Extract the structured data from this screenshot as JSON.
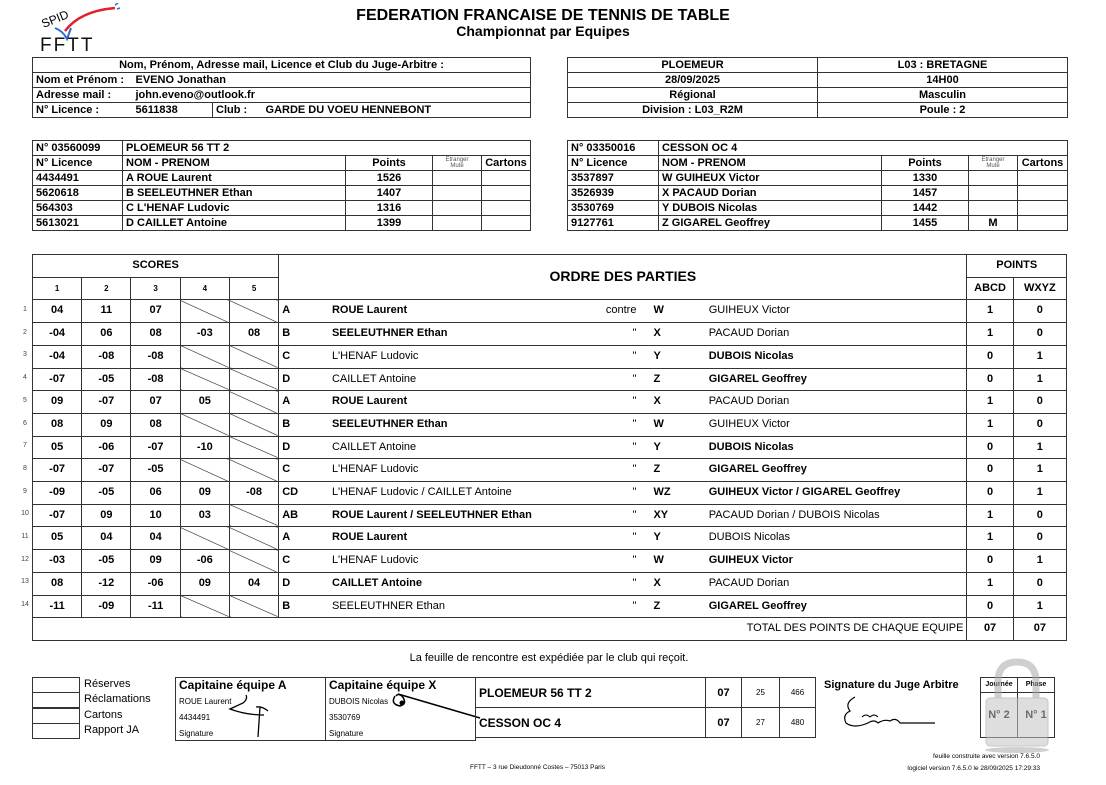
{
  "header": {
    "logo_text": "SPID FFTT",
    "title": "FEDERATION FRANCAISE DE TENNIS DE TABLE",
    "subtitle": "Championnat par Equipes"
  },
  "referee": {
    "heading": "Nom, Prénom, Adresse mail, Licence et Club du Juge-Arbitre :",
    "name_label": "Nom et Prénom :",
    "name": "EVENO   Jonathan",
    "email_label": "Adresse mail  :",
    "email": "john.eveno@outlook.fr",
    "licence_label": "N° Licence    :",
    "licence": "5611838",
    "club_label": "Club :",
    "club": "GARDE DU VOEU HENNEBONT"
  },
  "match_info": {
    "venue": "PLOEMEUR",
    "league": "L03 : BRETAGNE",
    "date": "28/09/2025",
    "time": "14H00",
    "level": "Régional",
    "gender": "Masculin",
    "division": "Division : L03_R2M",
    "poule": "Poule : 2"
  },
  "team_headers": {
    "licence": "N° Licence",
    "name": "NOM - PRENOM",
    "points": "Points",
    "etranger": "Etranger",
    "mute": "Muté",
    "cartons": "Cartons"
  },
  "team_a": {
    "number": "N° 03560099",
    "name": "PLOEMEUR 56 TT 2",
    "players": [
      {
        "licence": "4434491",
        "name": "A   ROUE  Laurent",
        "points": "1526",
        "etranger": "",
        "cartons": ""
      },
      {
        "licence": "5620618",
        "name": "B   SEELEUTHNER  Ethan",
        "points": "1407",
        "etranger": "",
        "cartons": ""
      },
      {
        "licence": "564303",
        "name": "C   L'HENAF  Ludovic",
        "points": "1316",
        "etranger": "",
        "cartons": ""
      },
      {
        "licence": "5613021",
        "name": "D   CAILLET  Antoine",
        "points": "1399",
        "etranger": "",
        "cartons": ""
      }
    ]
  },
  "team_b": {
    "number": "N° 03350016",
    "name": "CESSON OC  4",
    "players": [
      {
        "licence": "3537897",
        "name": "W   GUIHEUX  Victor",
        "points": "1330",
        "etranger": "",
        "cartons": ""
      },
      {
        "licence": "3526939",
        "name": "X   PACAUD  Dorian",
        "points": "1457",
        "etranger": "",
        "cartons": ""
      },
      {
        "licence": "3530769",
        "name": "Y   DUBOIS  Nicolas",
        "points": "1442",
        "etranger": "",
        "cartons": ""
      },
      {
        "licence": "9127761",
        "name": "Z   GIGAREL  Geoffrey",
        "points": "1455",
        "etranger": "M",
        "cartons": ""
      }
    ]
  },
  "scores_table": {
    "scores_label": "SCORES",
    "set_labels": [
      "1",
      "2",
      "3",
      "4",
      "5"
    ],
    "order_label": "ORDRE DES PARTIES",
    "points_label": "POINTS",
    "abcd": "ABCD",
    "wxyz": "WXYZ",
    "total_label": "TOTAL DES POINTS DE CHAQUE EQUIPE",
    "total_a": "07",
    "total_b": "07",
    "matches": [
      {
        "n": "1",
        "sets": [
          "04",
          "11",
          "07",
          null,
          null
        ],
        "la": "A",
        "na": "ROUE Laurent",
        "sep": "contre",
        "lb": "W",
        "nb": "GUIHEUX Victor",
        "pa": "1",
        "pb": "0"
      },
      {
        "n": "2",
        "sets": [
          "-04",
          "06",
          "08",
          "-03",
          "08"
        ],
        "la": "B",
        "na": "SEELEUTHNER Ethan",
        "sep": "\"",
        "lb": "X",
        "nb": "PACAUD Dorian",
        "pa": "1",
        "pb": "0"
      },
      {
        "n": "3",
        "sets": [
          "-04",
          "-08",
          "-08",
          null,
          null
        ],
        "la": "C",
        "na": "L'HENAF Ludovic",
        "sep": "\"",
        "lb": "Y",
        "nb": "DUBOIS Nicolas",
        "pa": "0",
        "pb": "1"
      },
      {
        "n": "4",
        "sets": [
          "-07",
          "-05",
          "-08",
          null,
          null
        ],
        "la": "D",
        "na": "CAILLET Antoine",
        "sep": "\"",
        "lb": "Z",
        "nb": "GIGAREL Geoffrey",
        "pa": "0",
        "pb": "1"
      },
      {
        "n": "5",
        "sets": [
          "09",
          "-07",
          "07",
          "05",
          null
        ],
        "la": "A",
        "na": "ROUE Laurent",
        "sep": "\"",
        "lb": "X",
        "nb": "PACAUD Dorian",
        "pa": "1",
        "pb": "0"
      },
      {
        "n": "6",
        "sets": [
          "08",
          "09",
          "08",
          null,
          null
        ],
        "la": "B",
        "na": "SEELEUTHNER Ethan",
        "sep": "\"",
        "lb": "W",
        "nb": "GUIHEUX Victor",
        "pa": "1",
        "pb": "0"
      },
      {
        "n": "7",
        "sets": [
          "05",
          "-06",
          "-07",
          "-10",
          null
        ],
        "la": "D",
        "na": "CAILLET Antoine",
        "sep": "\"",
        "lb": "Y",
        "nb": "DUBOIS Nicolas",
        "pa": "0",
        "pb": "1"
      },
      {
        "n": "8",
        "sets": [
          "-07",
          "-07",
          "-05",
          null,
          null
        ],
        "la": "C",
        "na": "L'HENAF Ludovic",
        "sep": "\"",
        "lb": "Z",
        "nb": "GIGAREL Geoffrey",
        "pa": "0",
        "pb": "1"
      },
      {
        "n": "9",
        "sets": [
          "-09",
          "-05",
          "06",
          "09",
          "-08"
        ],
        "la": "CD",
        "na": "L'HENAF Ludovic / CAILLET Antoine",
        "sep": "\"",
        "lb": "WZ",
        "nb": "GUIHEUX Victor / GIGAREL Geoffrey",
        "pa": "0",
        "pb": "1"
      },
      {
        "n": "10",
        "sets": [
          "-07",
          "09",
          "10",
          "03",
          null
        ],
        "la": "AB",
        "na": "ROUE Laurent / SEELEUTHNER Ethan",
        "sep": "\"",
        "lb": "XY",
        "nb": "PACAUD Dorian / DUBOIS Nicolas",
        "pa": "1",
        "pb": "0"
      },
      {
        "n": "11",
        "sets": [
          "05",
          "04",
          "04",
          null,
          null
        ],
        "la": "A",
        "na": "ROUE Laurent",
        "sep": "\"",
        "lb": "Y",
        "nb": "DUBOIS Nicolas",
        "pa": "1",
        "pb": "0"
      },
      {
        "n": "12",
        "sets": [
          "-03",
          "-05",
          "09",
          "-06",
          null
        ],
        "la": "C",
        "na": "L'HENAF Ludovic",
        "sep": "\"",
        "lb": "W",
        "nb": "GUIHEUX Victor",
        "pa": "0",
        "pb": "1"
      },
      {
        "n": "13",
        "sets": [
          "08",
          "-12",
          "-06",
          "09",
          "04"
        ],
        "la": "D",
        "na": "CAILLET Antoine",
        "sep": "\"",
        "lb": "X",
        "nb": "PACAUD Dorian",
        "pa": "1",
        "pb": "0"
      },
      {
        "n": "14",
        "sets": [
          "-11",
          "-09",
          "-11",
          null,
          null
        ],
        "la": "B",
        "na": "SEELEUTHNER Ethan",
        "sep": "\"",
        "lb": "Z",
        "nb": "GIGAREL Geoffrey",
        "pa": "0",
        "pb": "1"
      }
    ]
  },
  "footer": {
    "notice": "La feuille de rencontre est expédiée par le club qui reçoit.",
    "checkboxes": [
      "Réserves",
      "Réclamations",
      "Cartons",
      "Rapport JA"
    ],
    "captain_a": {
      "title": "Capitaine équipe A",
      "name": "ROUE Laurent",
      "licence": "4434491",
      "signature_label": "Signature"
    },
    "captain_x": {
      "title": "Capitaine équipe X",
      "name": "DUBOIS Nicolas",
      "licence": "3530769",
      "signature_label": "Signature"
    },
    "results": [
      {
        "team": "PLOEMEUR 56 TT 2",
        "points": "07",
        "sets": "25",
        "balls": "466"
      },
      {
        "team": "CESSON OC  4",
        "points": "07",
        "sets": "27",
        "balls": "480"
      }
    ],
    "referee_signature_label": "Signature du Juge Arbitre",
    "journee_label": "Journée",
    "journee": "N° 2",
    "phase_label": "Phase",
    "phase": "N° 1",
    "address": "FFTT – 3 rue Dieudonné Costes – 75013 Paris",
    "version_line1": "feuille construite avec version 7.6.5.0",
    "version_line2": "logiciel version 7.6.5.0 le 28/09/2025  17:29:33"
  },
  "colors": {
    "logo_red": "#e3202a",
    "logo_blue": "#2a6fd6",
    "lock_grey": "#b8b8b8"
  }
}
